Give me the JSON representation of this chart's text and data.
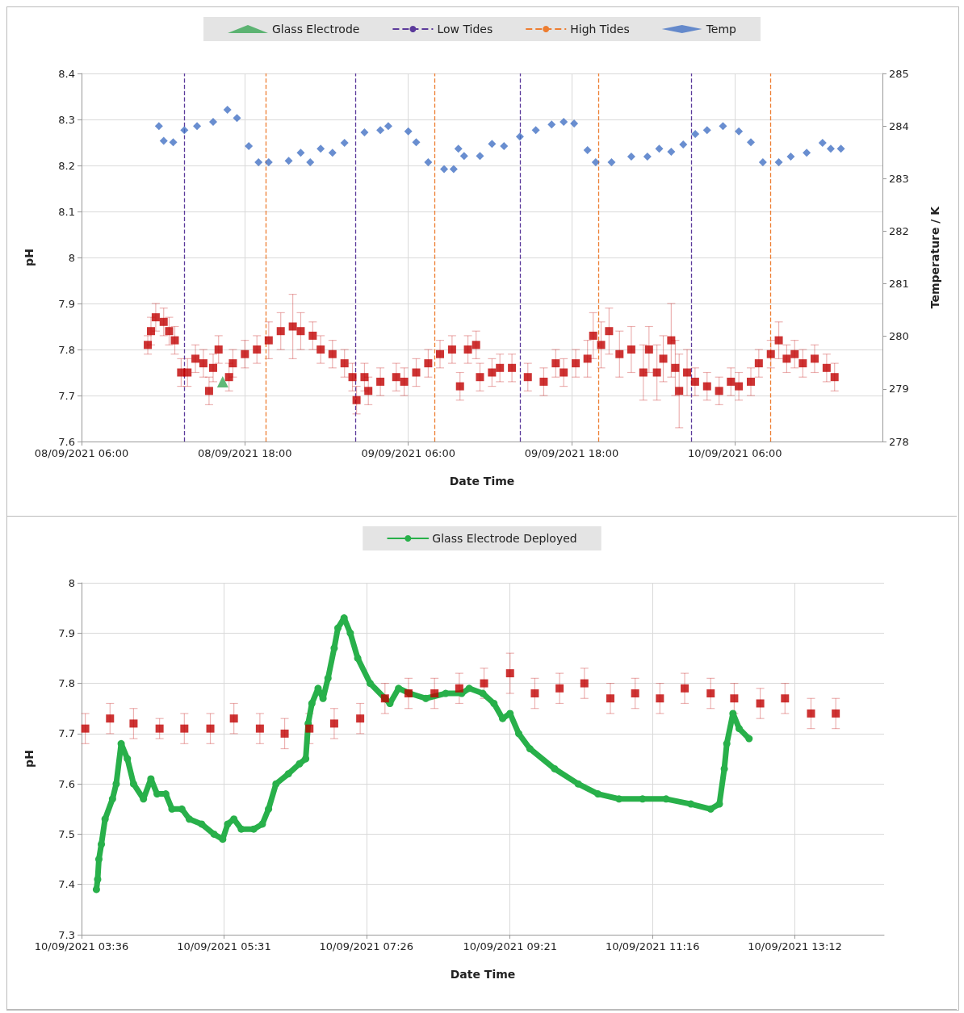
{
  "chart_data": [
    {
      "type": "scatter",
      "xlabel": "Date Time",
      "ylabel": "pH",
      "y2label": "Temperature / K",
      "legend": "top",
      "grid": true,
      "xlim": [
        "2021-09-08T06:00",
        "2021-09-10T16:50"
      ],
      "xticks": [
        {
          "value": "2021-09-08T06:00",
          "label": "08/09/2021 06:00"
        },
        {
          "value": "2021-09-08T18:00",
          "label": "08/09/2021 18:00"
        },
        {
          "value": "2021-09-09T06:00",
          "label": "09/09/2021 06:00"
        },
        {
          "value": "2021-09-09T18:00",
          "label": "09/09/2021 18:00"
        },
        {
          "value": "2021-09-10T06:00",
          "label": "10/09/2021 06:00"
        }
      ],
      "ylim": [
        7.6,
        8.4
      ],
      "yticks": [
        7.6,
        7.7,
        7.8,
        7.9,
        8,
        8.1,
        8.2,
        8.3,
        8.4
      ],
      "y2lim": [
        278,
        285
      ],
      "y2ticks": [
        278,
        279,
        280,
        281,
        282,
        283,
        284,
        285
      ],
      "ref_lines": [
        {
          "axis": "x",
          "value": "2021-09-08T13:33",
          "label": "Low Tides",
          "color": "#5b3a9b",
          "line_style": "dashed"
        },
        {
          "axis": "x",
          "value": "2021-09-09T02:08",
          "color": "#5b3a9b",
          "line_style": "dashed"
        },
        {
          "axis": "x",
          "value": "2021-09-09T14:12",
          "color": "#5b3a9b",
          "line_style": "dashed"
        },
        {
          "axis": "x",
          "value": "2021-09-10T02:47",
          "color": "#5b3a9b",
          "line_style": "dashed"
        },
        {
          "axis": "x",
          "value": "2021-09-08T19:31",
          "label": "High Tides",
          "color": "#ed7d31",
          "line_style": "dashed"
        },
        {
          "axis": "x",
          "value": "2021-09-09T07:56",
          "color": "#ed7d31",
          "line_style": "dashed"
        },
        {
          "axis": "x",
          "value": "2021-09-09T20:00",
          "color": "#ed7d31",
          "line_style": "dashed"
        },
        {
          "axis": "x",
          "value": "2021-09-10T08:35",
          "color": "#ed7d31",
          "line_style": "dashed"
        }
      ],
      "series": [
        {
          "color": "#c00000",
          "marker": "square",
          "x": [
            "2021-09-08T10:52",
            "2021-09-08T11:06",
            "2021-09-08T11:27",
            "2021-09-08T12:02",
            "2021-09-08T12:26",
            "2021-09-08T12:51",
            "2021-09-08T13:19",
            "2021-09-08T13:47",
            "2021-09-08T14:22",
            "2021-09-08T14:57",
            "2021-09-08T15:22",
            "2021-09-08T15:40",
            "2021-09-08T16:04",
            "2021-09-08T16:50",
            "2021-09-08T17:07",
            "2021-09-08T18:00",
            "2021-09-08T18:53",
            "2021-09-08T19:45",
            "2021-09-08T20:38",
            "2021-09-08T21:31",
            "2021-09-08T22:06",
            "2021-09-08T22:59",
            "2021-09-08T23:34",
            "2021-09-09T00:26",
            "2021-09-09T01:19",
            "2021-09-09T01:54",
            "2021-09-09T02:12",
            "2021-09-09T02:47",
            "2021-09-09T03:04",
            "2021-09-09T03:57",
            "2021-09-09T05:07",
            "2021-09-09T05:42",
            "2021-09-09T06:35",
            "2021-09-09T07:28",
            "2021-09-09T08:20",
            "2021-09-09T09:13",
            "2021-09-09T09:48",
            "2021-09-09T10:23",
            "2021-09-09T10:59",
            "2021-09-09T11:16",
            "2021-09-09T12:09",
            "2021-09-09T12:44",
            "2021-09-09T13:37",
            "2021-09-09T14:47",
            "2021-09-09T15:57",
            "2021-09-09T16:50",
            "2021-09-09T17:25",
            "2021-09-09T18:18",
            "2021-09-09T19:10",
            "2021-09-09T19:35",
            "2021-09-09T20:10",
            "2021-09-09T20:45",
            "2021-09-09T21:31",
            "2021-09-09T22:23",
            "2021-09-09T23:16",
            "2021-09-09T23:41",
            "2021-09-10T00:16",
            "2021-09-10T00:44",
            "2021-09-10T01:19",
            "2021-09-10T01:37",
            "2021-09-10T01:54",
            "2021-09-10T02:29",
            "2021-09-10T03:04",
            "2021-09-10T03:57",
            "2021-09-10T04:50",
            "2021-09-10T05:42",
            "2021-09-10T06:17",
            "2021-09-10T07:10",
            "2021-09-10T07:45",
            "2021-09-10T08:38",
            "2021-09-10T09:13",
            "2021-09-10T09:48",
            "2021-09-10T10:23",
            "2021-09-10T10:59",
            "2021-09-10T11:51",
            "2021-09-10T12:44",
            "2021-09-10T13:19"
          ],
          "values": [
            7.81,
            7.84,
            7.87,
            7.86,
            7.84,
            7.82,
            7.75,
            7.75,
            7.78,
            7.77,
            7.71,
            7.76,
            7.8,
            7.74,
            7.77,
            7.79,
            7.8,
            7.82,
            7.84,
            7.85,
            7.84,
            7.83,
            7.8,
            7.79,
            7.77,
            7.74,
            7.69,
            7.74,
            7.71,
            7.73,
            7.74,
            7.73,
            7.75,
            7.77,
            7.79,
            7.8,
            7.72,
            7.8,
            7.81,
            7.74,
            7.75,
            7.76,
            7.76,
            7.74,
            7.73,
            7.77,
            7.75,
            7.77,
            7.78,
            7.83,
            7.81,
            7.84,
            7.79,
            7.8,
            7.75,
            7.8,
            7.75,
            7.78,
            7.82,
            7.76,
            7.71,
            7.75,
            7.73,
            7.72,
            7.71,
            7.73,
            7.72,
            7.73,
            7.77,
            7.79,
            7.82,
            7.78,
            7.79,
            7.77,
            7.78,
            7.76,
            7.74
          ],
          "errors": [
            0.02,
            0.03,
            0.03,
            0.03,
            0.03,
            0.03,
            0.03,
            0.03,
            0.03,
            0.03,
            0.03,
            0.03,
            0.03,
            0.03,
            0.03,
            0.03,
            0.03,
            0.04,
            0.04,
            0.07,
            0.04,
            0.03,
            0.03,
            0.03,
            0.03,
            0.03,
            0.03,
            0.03,
            0.03,
            0.03,
            0.03,
            0.03,
            0.03,
            0.03,
            0.03,
            0.03,
            0.03,
            0.03,
            0.03,
            0.03,
            0.03,
            0.03,
            0.03,
            0.03,
            0.03,
            0.03,
            0.03,
            0.03,
            0.04,
            0.05,
            0.05,
            0.05,
            0.05,
            0.05,
            0.06,
            0.05,
            0.06,
            0.05,
            0.08,
            0.06,
            0.08,
            0.05,
            0.03,
            0.03,
            0.03,
            0.03,
            0.03,
            0.03,
            0.03,
            0.03,
            0.04,
            0.03,
            0.03,
            0.03,
            0.03,
            0.03,
            0.03
          ]
        },
        {
          "name": "Glass Electrode",
          "color": "#3aa655",
          "marker": "triangle",
          "x": [
            "2021-09-08T16:22"
          ],
          "values": [
            7.73
          ]
        },
        {
          "name": "Temp",
          "color": "#4472c4",
          "marker": "diamond",
          "axis": "y2",
          "x": [
            "2021-09-08T11:41",
            "2021-09-08T12:02",
            "2021-09-08T12:44",
            "2021-09-08T13:33",
            "2021-09-08T14:29",
            "2021-09-08T15:40",
            "2021-09-08T16:43",
            "2021-09-08T17:25",
            "2021-09-08T18:17",
            "2021-09-08T19:00",
            "2021-09-08T19:45",
            "2021-09-08T21:13",
            "2021-09-08T22:06",
            "2021-09-08T22:48",
            "2021-09-08T23:34",
            "2021-09-09T00:26",
            "2021-09-09T01:19",
            "2021-09-09T02:47",
            "2021-09-09T03:57",
            "2021-09-09T04:32",
            "2021-09-09T06:00",
            "2021-09-09T06:35",
            "2021-09-09T07:28",
            "2021-09-09T08:38",
            "2021-09-09T09:20",
            "2021-09-09T09:41",
            "2021-09-09T10:06",
            "2021-09-09T11:16",
            "2021-09-09T12:09",
            "2021-09-09T13:02",
            "2021-09-09T14:12",
            "2021-09-09T15:22",
            "2021-09-09T16:32",
            "2021-09-09T17:25",
            "2021-09-09T18:11",
            "2021-09-09T19:10",
            "2021-09-09T19:46",
            "2021-09-09T20:56",
            "2021-09-09T22:23",
            "2021-09-09T23:34",
            "2021-09-10T00:26",
            "2021-09-10T01:19",
            "2021-09-10T02:12",
            "2021-09-10T03:05",
            "2021-09-10T03:57",
            "2021-09-10T05:07",
            "2021-09-10T06:17",
            "2021-09-10T07:10",
            "2021-09-10T08:03",
            "2021-09-10T09:13",
            "2021-09-10T10:06",
            "2021-09-10T11:16",
            "2021-09-10T12:26",
            "2021-09-10T13:02",
            "2021-09-10T13:47"
          ],
          "values": [
            284.0,
            283.72,
            283.69,
            283.92,
            284.0,
            284.08,
            284.31,
            284.15,
            283.62,
            283.31,
            283.31,
            283.34,
            283.49,
            283.31,
            283.57,
            283.49,
            283.68,
            283.88,
            283.92,
            284.0,
            283.9,
            283.69,
            283.31,
            283.18,
            283.18,
            283.57,
            283.43,
            283.43,
            283.66,
            283.62,
            283.8,
            283.92,
            284.03,
            284.08,
            284.05,
            283.54,
            283.31,
            283.31,
            283.42,
            283.42,
            283.57,
            283.51,
            283.65,
            283.85,
            283.92,
            284.0,
            283.9,
            283.69,
            283.31,
            283.31,
            283.42,
            283.49,
            283.68,
            283.57,
            283.57
          ]
        }
      ]
    },
    {
      "type": "scatter",
      "xlabel": "Date Time",
      "ylabel": "pH",
      "legend": "top",
      "grid": true,
      "xlim": [
        "2021-09-10T03:36",
        "2021-09-10T14:24"
      ],
      "xticks": [
        {
          "value": "2021-09-10T03:36",
          "label": "10/09/2021 03:36"
        },
        {
          "value": "2021-09-10T05:31",
          "label": "10/09/2021 05:31"
        },
        {
          "value": "2021-09-10T07:26",
          "label": "10/09/2021 07:26"
        },
        {
          "value": "2021-09-10T09:22",
          "label": "10/09/2021 09:21"
        },
        {
          "value": "2021-09-10T11:17",
          "label": "10/09/2021 11:16"
        },
        {
          "value": "2021-09-10T13:12",
          "label": "10/09/2021 13:12"
        }
      ],
      "ylim": [
        7.3,
        8
      ],
      "yticks": [
        7.3,
        7.4,
        7.5,
        7.6,
        7.7,
        7.8,
        7.9,
        8
      ],
      "series": [
        {
          "color": "#c00000",
          "marker": "square",
          "x": [
            "2021-09-10T03:39",
            "2021-09-10T03:59",
            "2021-09-10T04:18",
            "2021-09-10T04:39",
            "2021-09-10T04:59",
            "2021-09-10T05:20",
            "2021-09-10T05:39",
            "2021-09-10T06:00",
            "2021-09-10T06:20",
            "2021-09-10T06:40",
            "2021-09-10T07:00",
            "2021-09-10T07:21",
            "2021-09-10T07:41",
            "2021-09-10T08:00",
            "2021-09-10T08:21",
            "2021-09-10T08:41",
            "2021-09-10T09:01",
            "2021-09-10T09:22",
            "2021-09-10T09:42",
            "2021-09-10T10:02",
            "2021-09-10T10:22",
            "2021-09-10T10:43",
            "2021-09-10T11:03",
            "2021-09-10T11:23",
            "2021-09-10T11:43",
            "2021-09-10T12:04",
            "2021-09-10T12:23",
            "2021-09-10T12:44",
            "2021-09-10T13:04",
            "2021-09-10T13:25",
            "2021-09-10T13:45"
          ],
          "values": [
            7.71,
            7.73,
            7.72,
            7.71,
            7.71,
            7.71,
            7.73,
            7.71,
            7.7,
            7.71,
            7.72,
            7.73,
            7.77,
            7.78,
            7.78,
            7.79,
            7.8,
            7.82,
            7.78,
            7.79,
            7.8,
            7.77,
            7.78,
            7.77,
            7.79,
            7.78,
            7.77,
            7.76,
            7.77,
            7.74,
            7.74
          ],
          "errors": [
            0.03,
            0.03,
            0.03,
            0.02,
            0.03,
            0.03,
            0.03,
            0.03,
            0.03,
            0.03,
            0.03,
            0.03,
            0.03,
            0.03,
            0.03,
            0.03,
            0.03,
            0.04,
            0.03,
            0.03,
            0.03,
            0.03,
            0.03,
            0.03,
            0.03,
            0.03,
            0.03,
            0.03,
            0.03,
            0.03,
            0.03
          ]
        },
        {
          "name": "Glass Electrode Deployed",
          "type": "line",
          "color": "#28b04a",
          "marker": "circle",
          "x": [
            "2021-09-10T03:48",
            "2021-09-10T03:49",
            "2021-09-10T03:50",
            "2021-09-10T03:52",
            "2021-09-10T03:55",
            "2021-09-10T04:01",
            "2021-09-10T04:04",
            "2021-09-10T04:08",
            "2021-09-10T04:13",
            "2021-09-10T04:18",
            "2021-09-10T04:26",
            "2021-09-10T04:32",
            "2021-09-10T04:37",
            "2021-09-10T04:44",
            "2021-09-10T04:49",
            "2021-09-10T04:57",
            "2021-09-10T05:03",
            "2021-09-10T05:13",
            "2021-09-10T05:23",
            "2021-09-10T05:30",
            "2021-09-10T05:34",
            "2021-09-10T05:39",
            "2021-09-10T05:45",
            "2021-09-10T05:55",
            "2021-09-10T06:02",
            "2021-09-10T06:07",
            "2021-09-10T06:13",
            "2021-09-10T06:23",
            "2021-09-10T06:32",
            "2021-09-10T06:37",
            "2021-09-10T06:39",
            "2021-09-10T06:42",
            "2021-09-10T06:47",
            "2021-09-10T06:51",
            "2021-09-10T06:55",
            "2021-09-10T07:00",
            "2021-09-10T07:03",
            "2021-09-10T07:08",
            "2021-09-10T07:13",
            "2021-09-10T07:19",
            "2021-09-10T07:29",
            "2021-09-10T07:41",
            "2021-09-10T07:45",
            "2021-09-10T07:52",
            "2021-09-10T08:01",
            "2021-09-10T08:14",
            "2021-09-10T08:30",
            "2021-09-10T08:43",
            "2021-09-10T08:49",
            "2021-09-10T09:00",
            "2021-09-10T09:09",
            "2021-09-10T09:16",
            "2021-09-10T09:22",
            "2021-09-10T09:29",
            "2021-09-10T09:38",
            "2021-09-10T09:58",
            "2021-09-10T10:17",
            "2021-09-10T10:33",
            "2021-09-10T10:50",
            "2021-09-10T11:09",
            "2021-09-10T11:28",
            "2021-09-10T11:48",
            "2021-09-10T12:04",
            "2021-09-10T12:11",
            "2021-09-10T12:15",
            "2021-09-10T12:17",
            "2021-09-10T12:22",
            "2021-09-10T12:27",
            "2021-09-10T12:35"
          ],
          "values": [
            7.39,
            7.41,
            7.45,
            7.48,
            7.53,
            7.57,
            7.6,
            7.68,
            7.65,
            7.6,
            7.57,
            7.61,
            7.58,
            7.58,
            7.55,
            7.55,
            7.53,
            7.52,
            7.5,
            7.49,
            7.52,
            7.53,
            7.51,
            7.51,
            7.52,
            7.55,
            7.6,
            7.62,
            7.64,
            7.65,
            7.72,
            7.76,
            7.79,
            7.77,
            7.81,
            7.87,
            7.91,
            7.93,
            7.9,
            7.85,
            7.8,
            7.77,
            7.76,
            7.79,
            7.78,
            7.77,
            7.78,
            7.78,
            7.79,
            7.78,
            7.76,
            7.73,
            7.74,
            7.7,
            7.67,
            7.63,
            7.6,
            7.58,
            7.57,
            7.57,
            7.57,
            7.56,
            7.55,
            7.56,
            7.63,
            7.68,
            7.74,
            7.71,
            7.69
          ]
        }
      ]
    }
  ]
}
